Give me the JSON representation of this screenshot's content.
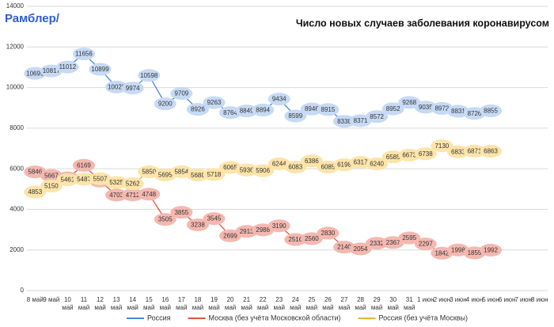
{
  "brand": "Рамблер/",
  "chart_data": {
    "type": "line",
    "title": "Число новых случаев заболевания коронавирусом",
    "categories": [
      "8 май",
      "9 май",
      "10 май",
      "11 май",
      "12 май",
      "13 май",
      "14 май",
      "15 май",
      "16 май",
      "17 май",
      "18 май",
      "19 май",
      "20 май",
      "21 май",
      "22 май",
      "23 май",
      "24 май",
      "25 май",
      "26 май",
      "27 май",
      "28 май",
      "29 май",
      "30 май",
      "31 май",
      "1 июн",
      "2 июн",
      "3 июн",
      "4 июн",
      "5 июн",
      "6 июн",
      "7 июн",
      "8 июн"
    ],
    "series": [
      {
        "name": "Россия",
        "color": "#4a86e8",
        "bubble": "#c6daf5",
        "values": [
          10699,
          10817,
          11012,
          11656,
          10899,
          10028,
          9974,
          10598,
          9200,
          9709,
          8926,
          9263,
          8764,
          8849,
          8894,
          9434,
          8599,
          8946,
          8915,
          8338,
          8371,
          8572,
          8952,
          9268,
          9035,
          8972,
          8831,
          8726,
          8855,
          null,
          null,
          null
        ]
      },
      {
        "name": "Москва (без учёта Московской области)",
        "color": "#e8533a",
        "bubble": "#f4b8b0",
        "values": [
          5846,
          5667,
          5551,
          6169,
          5392,
          4703,
          4712,
          4748,
          3505,
          3855,
          3238,
          3545,
          2699,
          2913,
          2988,
          3190,
          2516,
          2560,
          2830,
          2140,
          2054,
          2332,
          2367,
          2595,
          2297,
          1842,
          1998,
          1855,
          1992,
          null,
          null,
          null
        ]
      },
      {
        "name": "Россия (без учёта Москвы)",
        "color": "#f2b233",
        "bubble": "#fde4a8",
        "values": [
          4853,
          5150,
          5461,
          5487,
          5507,
          5325,
          5262,
          5850,
          5695,
          5854,
          5688,
          5718,
          6065,
          5936,
          5906,
          6244,
          6083,
          6386,
          6085,
          6198,
          6317,
          6240,
          6585,
          6673,
          6738,
          7130,
          6833,
          6871,
          6863,
          null,
          null,
          null
        ]
      }
    ],
    "ylim": [
      0,
      14000
    ],
    "yticks": [
      0,
      2000,
      4000,
      6000,
      8000,
      10000,
      12000,
      14000
    ],
    "grid": true
  }
}
